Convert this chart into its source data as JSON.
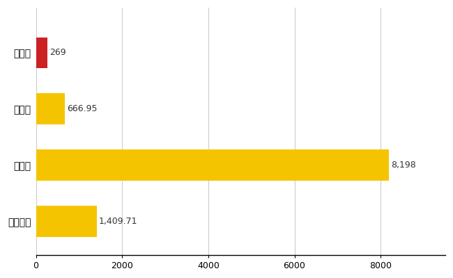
{
  "categories": [
    "飯綱町",
    "県平均",
    "県最大",
    "全国平均"
  ],
  "values": [
    269,
    666.95,
    8198,
    1409.71
  ],
  "bar_colors": [
    "#cc2222",
    "#f5c400",
    "#f5c400",
    "#f5c400"
  ],
  "value_labels": [
    "269",
    "666.95",
    "8,198",
    "1,409.71"
  ],
  "xlim": [
    0,
    9500
  ],
  "xticks": [
    0,
    2000,
    4000,
    6000,
    8000
  ],
  "xtick_labels": [
    "0",
    "2000",
    "4000",
    "6000",
    "8000"
  ],
  "background_color": "#ffffff",
  "grid_color": "#cccccc",
  "label_fontsize": 10,
  "tick_fontsize": 9,
  "annotation_fontsize": 9,
  "bar_height": 0.55
}
